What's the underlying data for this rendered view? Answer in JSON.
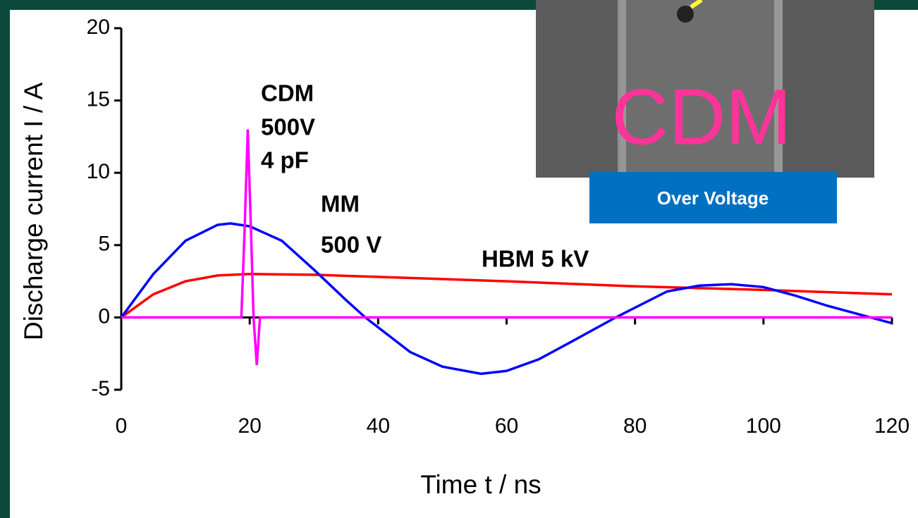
{
  "chart_data": {
    "type": "line",
    "x_label": "Time t / ns",
    "y_label": "Discharge current   I / A",
    "xlim": [
      0,
      120
    ],
    "xticks": [
      0,
      20,
      40,
      60,
      80,
      100,
      120
    ],
    "ylim": [
      -5,
      20
    ],
    "yticks": [
      -5,
      0,
      5,
      10,
      15,
      20
    ],
    "series": [
      {
        "color": "#ff0000",
        "x": [
          0,
          5,
          10,
          15,
          20,
          30,
          40,
          60,
          80,
          100,
          120
        ],
        "values": [
          0,
          1.6,
          2.5,
          2.9,
          3.0,
          2.95,
          2.8,
          2.5,
          2.15,
          1.9,
          1.6
        ]
      },
      {
        "color": "#0000ff",
        "x": [
          0,
          5,
          10,
          15,
          17,
          20,
          25,
          30,
          35,
          38,
          45,
          50,
          56,
          60,
          65,
          70,
          77,
          85,
          90,
          95,
          100,
          105,
          110,
          115,
          120
        ],
        "values": [
          0,
          3.0,
          5.3,
          6.4,
          6.5,
          6.3,
          5.3,
          3.3,
          1.2,
          0,
          -2.4,
          -3.4,
          -3.9,
          -3.7,
          -2.9,
          -1.7,
          0,
          1.8,
          2.2,
          2.3,
          2.1,
          1.5,
          0.8,
          0.2,
          -0.4
        ]
      },
      {
        "color": "#ff00ff",
        "x": [
          0,
          18.7,
          19.2,
          19.7,
          20.2,
          20.6,
          21.1,
          21.6,
          22,
          120
        ],
        "values": [
          0,
          0,
          6,
          13,
          6,
          0,
          -3.3,
          0,
          0,
          0
        ]
      }
    ],
    "annotations": [
      "CDM",
      "500V",
      "4 pF",
      "MM",
      "500 V",
      "HBM 5 kV"
    ],
    "inset": {
      "label": "CDM",
      "caption": "Over Voltage"
    }
  }
}
